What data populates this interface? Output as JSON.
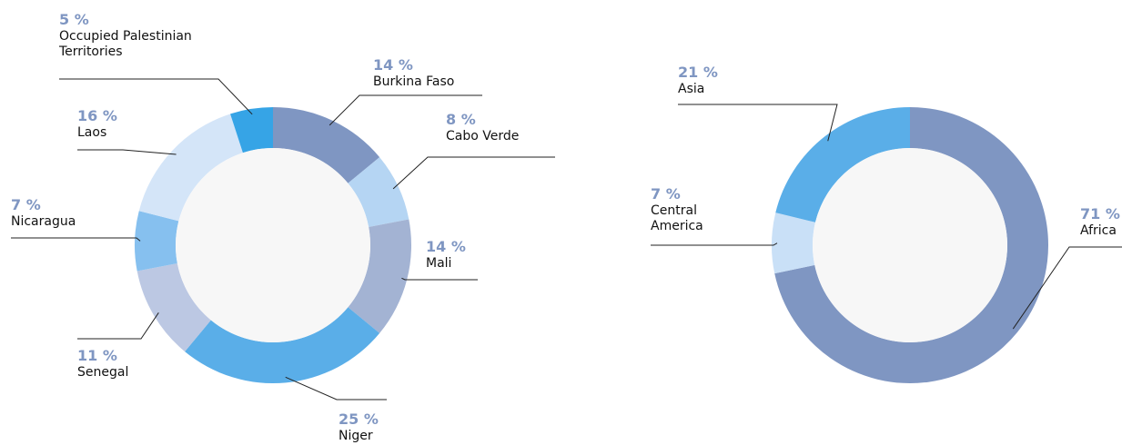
{
  "chart_data": [
    {
      "type": "donut",
      "categories": [
        "Burkina Faso",
        "Cabo Verde",
        "Mali",
        "Niger",
        "Senegal",
        "Nicaragua",
        "Laos",
        "Occupied Palestinian Territories"
      ],
      "values": [
        14,
        8,
        14,
        25,
        11,
        7,
        16,
        5
      ],
      "value_labels": [
        "14 %",
        "8 %",
        "14 %",
        "25 %",
        "11 %",
        "7 %",
        "16 %",
        "5 %"
      ],
      "colors": [
        "#7f96c2",
        "#b5d5f3",
        "#a3b3d3",
        "#5aaee8",
        "#bcc8e3",
        "#86c0ef",
        "#d4e5f8",
        "#36a4e6"
      ]
    },
    {
      "type": "donut",
      "categories": [
        "Africa",
        "Central America",
        "Asia"
      ],
      "values": [
        71,
        7,
        21
      ],
      "value_labels": [
        "71 %",
        "7 %",
        "21 %"
      ],
      "colors": [
        "#7f96c2",
        "#c9e0f7",
        "#5aaee8"
      ]
    }
  ]
}
